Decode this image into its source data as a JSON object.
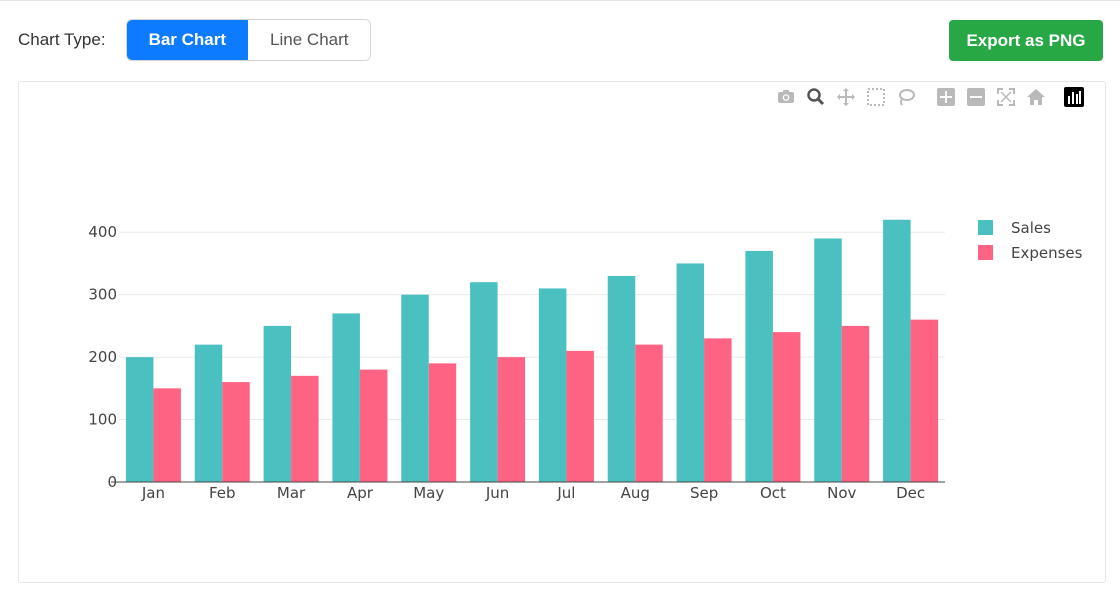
{
  "controls": {
    "label": "Chart Type:",
    "bar_label": "Bar Chart",
    "line_label": "Line Chart",
    "selected": "Bar Chart",
    "export_label": "Export as PNG"
  },
  "modebar": {
    "icons": [
      "camera-icon",
      "zoom-icon",
      "pan-icon",
      "box-select-icon",
      "lasso-icon",
      "zoom-in-icon",
      "zoom-out-icon",
      "autoscale-icon",
      "reset-axes-icon",
      "plotly-logo-icon"
    ]
  },
  "colors": {
    "active_button": "#0d7bff",
    "export_button": "#28a745",
    "sales": "#4bc0c0",
    "expenses": "#ff6384"
  },
  "chart_data": {
    "type": "bar",
    "categories": [
      "Jan",
      "Feb",
      "Mar",
      "Apr",
      "May",
      "Jun",
      "Jul",
      "Aug",
      "Sep",
      "Oct",
      "Nov",
      "Dec"
    ],
    "series": [
      {
        "name": "Sales",
        "values": [
          200,
          220,
          250,
          270,
          300,
          320,
          310,
          330,
          350,
          370,
          390,
          420
        ]
      },
      {
        "name": "Expenses",
        "values": [
          150,
          160,
          170,
          180,
          190,
          200,
          210,
          220,
          230,
          240,
          250,
          260
        ]
      }
    ],
    "yticks": [
      0,
      100,
      200,
      300,
      400
    ],
    "ylim": [
      0,
      442
    ],
    "grid": true,
    "legend_position": "right"
  }
}
